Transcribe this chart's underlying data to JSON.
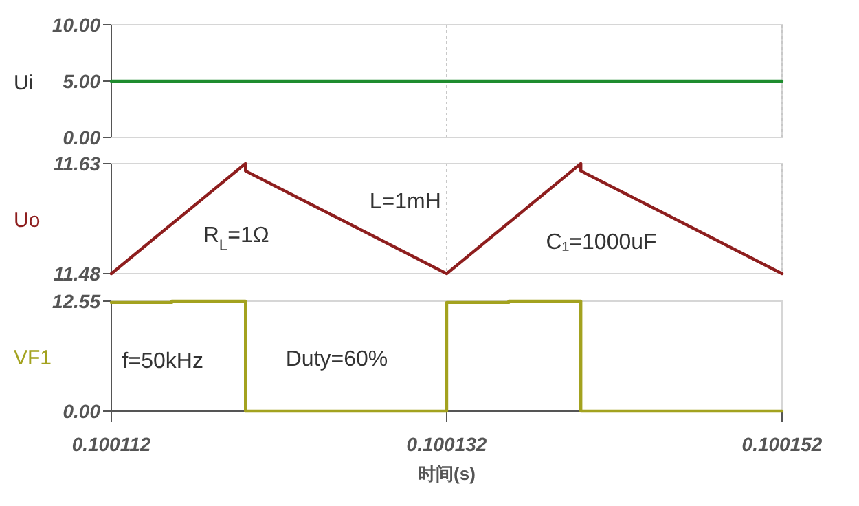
{
  "chart_data": [
    {
      "type": "line",
      "ylabel": "Ui",
      "x": [
        0.100112,
        0.100152
      ],
      "series": [
        {
          "color": "#1e8c2e",
          "values": [
            5.0,
            5.0
          ]
        }
      ],
      "xlim": [
        0.100112,
        0.100152
      ],
      "xticks": [
        0.100112,
        0.100132,
        0.100152
      ],
      "ylim": [
        0,
        10
      ],
      "yticks": [
        {
          "value": 0,
          "label": "0.00"
        },
        {
          "value": 5,
          "label": "5.00"
        },
        {
          "value": 10,
          "label": "10.00"
        }
      ],
      "grid": "x",
      "tick_labels": "y"
    },
    {
      "type": "line",
      "ylabel": "Uo",
      "x": [
        0.100112,
        0.10012,
        0.10012,
        0.100132,
        0.10014,
        0.10014,
        0.100152
      ],
      "series": [
        {
          "color": "#8e1e1e",
          "values": [
            11.48,
            11.63,
            11.62,
            11.48,
            11.63,
            11.62,
            11.48
          ]
        }
      ],
      "xlim": [
        0.100112,
        0.100152
      ],
      "xticks": [
        0.100112,
        0.100132,
        0.100152
      ],
      "ylim": [
        11.48,
        11.63
      ],
      "yticks": [
        {
          "value": 11.48,
          "label": "11.48"
        },
        {
          "value": 11.63,
          "label": "11.63"
        }
      ],
      "grid": "x",
      "tick_labels": "y",
      "annotations": [
        "R$_{L}$=1Ω",
        "L=1mH",
        "C₁=1000uF"
      ]
    },
    {
      "type": "line",
      "ylabel": "VF1",
      "xlabel": "时间(s)",
      "x": [
        0.100112,
        0.1001156,
        0.1001156,
        0.10012,
        0.10012,
        0.100132,
        0.100132,
        0.1001357,
        0.1001357,
        0.10014,
        0.10014,
        0.100152
      ],
      "series": [
        {
          "color": "#a3a21f",
          "values": [
            12.4,
            12.4,
            12.55,
            12.55,
            0,
            0,
            12.4,
            12.4,
            12.55,
            12.55,
            0,
            0
          ]
        }
      ],
      "xlim": [
        0.100112,
        0.100152
      ],
      "xticks": [
        0.100112,
        0.100132,
        0.100152
      ],
      "ylim": [
        0,
        12.55
      ],
      "yticks": [
        {
          "value": 0,
          "label": "0.00"
        },
        {
          "value": 12.55,
          "label": "12.55"
        }
      ],
      "annotations": [
        "f=50kHz",
        "Duty=60%"
      ]
    }
  ]
}
